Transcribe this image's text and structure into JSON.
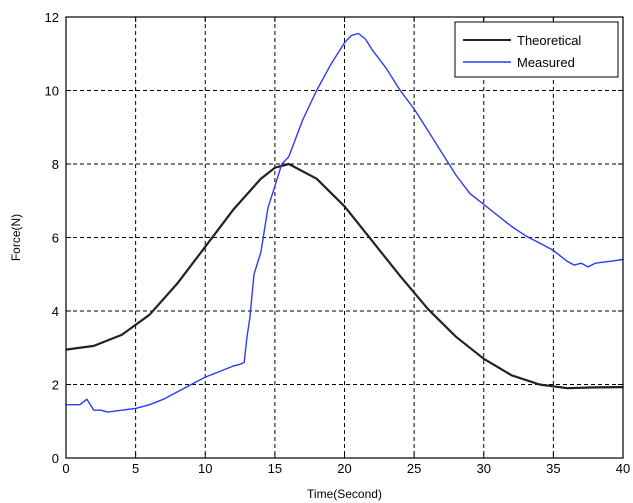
{
  "chart_data": {
    "type": "line",
    "title": "",
    "xlabel": "Time(Second)",
    "ylabel": "Force(N)",
    "xlim": [
      0,
      40
    ],
    "ylim": [
      0,
      12
    ],
    "xticks": [
      0,
      5,
      10,
      15,
      20,
      25,
      30,
      35,
      40
    ],
    "yticks": [
      0,
      2,
      4,
      6,
      8,
      10,
      12
    ],
    "grid": true,
    "legend_position": "top-right",
    "series": [
      {
        "name": "Theoretical",
        "color": "#222222",
        "x": [
          0,
          2,
          4,
          6,
          8,
          10,
          12,
          14,
          15,
          16,
          18,
          20,
          22,
          24,
          26,
          28,
          30,
          32,
          34,
          36,
          38,
          40
        ],
        "y": [
          2.95,
          3.05,
          3.35,
          3.9,
          4.75,
          5.75,
          6.75,
          7.6,
          7.9,
          8.0,
          7.6,
          6.85,
          5.9,
          4.95,
          4.05,
          3.3,
          2.7,
          2.25,
          2.0,
          1.9,
          1.92,
          1.93
        ]
      },
      {
        "name": "Measured",
        "color": "#2a3cf5",
        "x": [
          0,
          1,
          1.5,
          2,
          2.5,
          3,
          4,
          5,
          6,
          7,
          8,
          9,
          10,
          11,
          12,
          12.5,
          12.8,
          13,
          13.2,
          13.5,
          14,
          14.5,
          15,
          15.5,
          16,
          17,
          18,
          19,
          20,
          20.5,
          21,
          21.5,
          22,
          23,
          24,
          25,
          26,
          27,
          28,
          29,
          30,
          31,
          32,
          33,
          34,
          35,
          35.5,
          36,
          36.5,
          37,
          37.5,
          38,
          39,
          40
        ],
        "y": [
          1.45,
          1.45,
          1.6,
          1.3,
          1.3,
          1.25,
          1.3,
          1.35,
          1.45,
          1.6,
          1.8,
          2.0,
          2.2,
          2.35,
          2.5,
          2.55,
          2.6,
          3.3,
          3.8,
          5.0,
          5.6,
          6.8,
          7.4,
          8.0,
          8.2,
          9.2,
          10.0,
          10.7,
          11.3,
          11.5,
          11.55,
          11.4,
          11.1,
          10.6,
          10.0,
          9.5,
          8.9,
          8.3,
          7.7,
          7.2,
          6.9,
          6.6,
          6.3,
          6.05,
          5.85,
          5.65,
          5.5,
          5.35,
          5.25,
          5.3,
          5.2,
          5.3,
          5.35,
          5.4
        ]
      }
    ]
  }
}
